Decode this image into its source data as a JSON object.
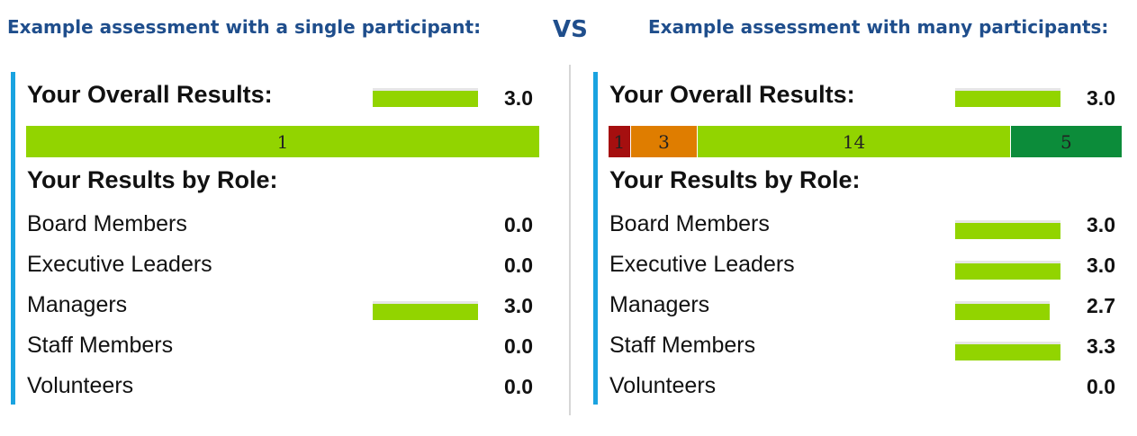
{
  "headings": {
    "single": "Example assessment with a single participant:",
    "vs": "VS",
    "many": "Example assessment with many participants:"
  },
  "chart_data": [
    {
      "type": "bar",
      "overall_label": "Your Overall Results:",
      "overall_score": "3.0",
      "overall_value": 3.0,
      "distribution": [
        {
          "label": "1",
          "count": 1,
          "color": "#92d400"
        }
      ],
      "roles_label": "Your Results by Role:",
      "categories": [
        "Board Members",
        "Executive Leaders",
        "Managers",
        "Staff Members",
        "Volunteers"
      ],
      "values": [
        0.0,
        0.0,
        3.0,
        0.0,
        0.0
      ],
      "value_labels": [
        "0.0",
        "0.0",
        "3.0",
        "0.0",
        "0.0"
      ]
    },
    {
      "type": "bar",
      "overall_label": "Your Overall Results:",
      "overall_score": "3.0",
      "overall_value": 3.0,
      "distribution": [
        {
          "label": "1",
          "count": 1,
          "color": "#a50f0f"
        },
        {
          "label": "3",
          "count": 3,
          "color": "#df7d00"
        },
        {
          "label": "14",
          "count": 14,
          "color": "#92d400"
        },
        {
          "label": "5",
          "count": 5,
          "color": "#0c8c3a"
        }
      ],
      "roles_label": "Your Results by Role:",
      "categories": [
        "Board Members",
        "Executive Leaders",
        "Managers",
        "Staff Members",
        "Volunteers"
      ],
      "values": [
        3.0,
        3.0,
        2.7,
        3.3,
        0.0
      ],
      "value_labels": [
        "3.0",
        "3.0",
        "2.7",
        "3.3",
        "0.0"
      ]
    }
  ],
  "colors": {
    "accent": "#1aa3e0",
    "bar": "#92d400",
    "heading": "#1f4e8c"
  }
}
